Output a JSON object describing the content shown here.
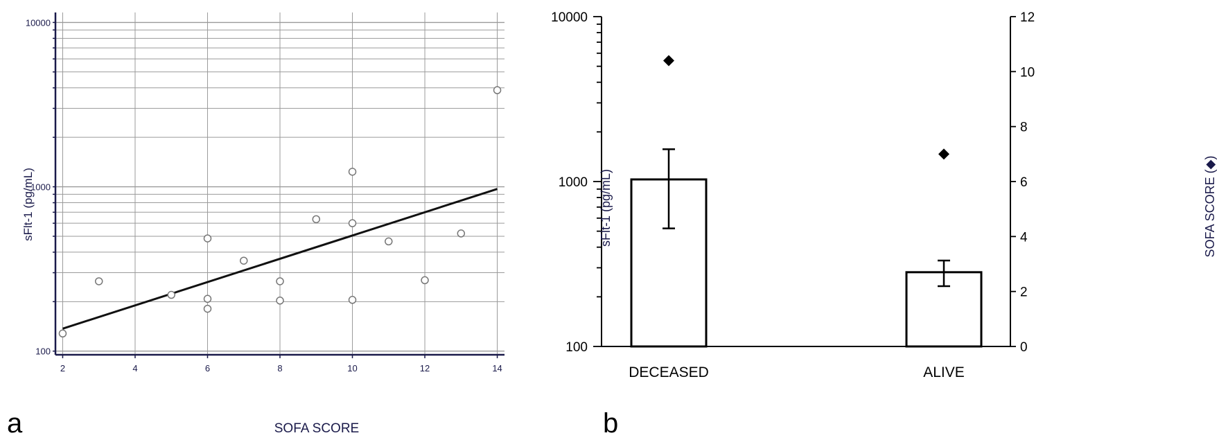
{
  "panels": [
    {
      "panel_label": "a",
      "chart_data": {
        "type": "scatter",
        "xlabel": "SOFA SCORE",
        "ylabel": "sFlt-1 (pg/mL)",
        "x_scale": "linear",
        "y_scale": "log",
        "xlim": [
          1.8,
          14.2
        ],
        "ylim": [
          95,
          11500
        ],
        "x_ticks": [
          2,
          4,
          6,
          8,
          10,
          12,
          14
        ],
        "y_ticks": [
          100,
          1000,
          10000
        ],
        "grid": true,
        "points": [
          {
            "x": 2,
            "y": 128
          },
          {
            "x": 3,
            "y": 266
          },
          {
            "x": 5,
            "y": 220
          },
          {
            "x": 6,
            "y": 485
          },
          {
            "x": 6,
            "y": 208
          },
          {
            "x": 6,
            "y": 181
          },
          {
            "x": 7,
            "y": 355
          },
          {
            "x": 8,
            "y": 266
          },
          {
            "x": 8,
            "y": 203
          },
          {
            "x": 9,
            "y": 635
          },
          {
            "x": 10,
            "y": 1235
          },
          {
            "x": 10,
            "y": 600
          },
          {
            "x": 10,
            "y": 205
          },
          {
            "x": 11,
            "y": 465
          },
          {
            "x": 12,
            "y": 270
          },
          {
            "x": 13,
            "y": 520
          },
          {
            "x": 14,
            "y": 3870
          }
        ],
        "trend_line": {
          "x": [
            2,
            14
          ],
          "y": [
            137,
            970
          ]
        },
        "colors": {
          "axis": "#1a1a4a",
          "grid": "#9a9a9a",
          "point_stroke": "#777777",
          "line": "#111111"
        }
      }
    },
    {
      "panel_label": "b",
      "chart_data": {
        "type": "bar",
        "categories": [
          "DECEASED",
          "ALIVE"
        ],
        "ylabel": "sFlt-1 (pg/mL)",
        "y_scale": "log",
        "ylim": [
          100,
          10000
        ],
        "y_ticks": [
          100,
          1000,
          10000
        ],
        "y2label": "SOFA SCORE (◆)",
        "y2lim": [
          0,
          12
        ],
        "y2_ticks": [
          0,
          2,
          4,
          6,
          8,
          10,
          12
        ],
        "grid": false,
        "bars": [
          {
            "value": 1030,
            "error_low": 520,
            "error_high": 1570
          },
          {
            "value": 282,
            "error_low": 232,
            "error_high": 332
          }
        ],
        "sofa_markers": [
          10.4,
          7.0
        ],
        "colors": {
          "bar_fill": "#ffffff",
          "bar_stroke": "#000000",
          "marker": "#000000"
        }
      }
    }
  ]
}
